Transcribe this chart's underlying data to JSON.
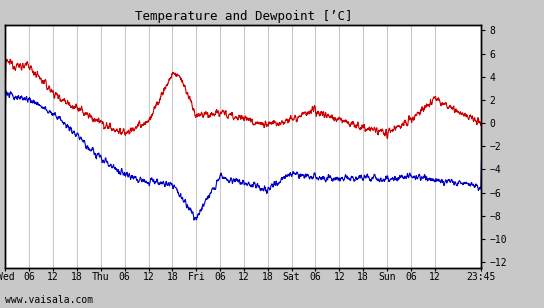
{
  "title": "Temperature and Dewpoint [’C]",
  "ylabel_right_ticks": [
    8,
    6,
    4,
    2,
    0,
    -2,
    -4,
    -6,
    -8,
    -10,
    -12
  ],
  "ylim": [
    -12.5,
    8.5
  ],
  "background_color": "#c8c8c8",
  "plot_bg_color": "#ffffff",
  "grid_color": "#c8c8c8",
  "temp_color": "#cc0000",
  "dewp_color": "#0000cc",
  "line_width": 0.8,
  "watermark": "www.vaisala.com",
  "x_tick_labels": [
    "Wed",
    "06",
    "12",
    "18",
    "Thu",
    "06",
    "12",
    "18",
    "Fri",
    "06",
    "12",
    "18",
    "Sat",
    "06",
    "12",
    "18",
    "Sun",
    "06",
    "12",
    "23:45"
  ],
  "x_tick_positions": [
    0,
    6,
    12,
    18,
    24,
    30,
    36,
    42,
    48,
    54,
    60,
    66,
    72,
    78,
    84,
    90,
    96,
    102,
    108,
    119.75
  ],
  "xlim": [
    0,
    119.75
  ],
  "noise_scale_t": 0.35,
  "noise_scale_d": 0.3,
  "smooth_window": 5
}
